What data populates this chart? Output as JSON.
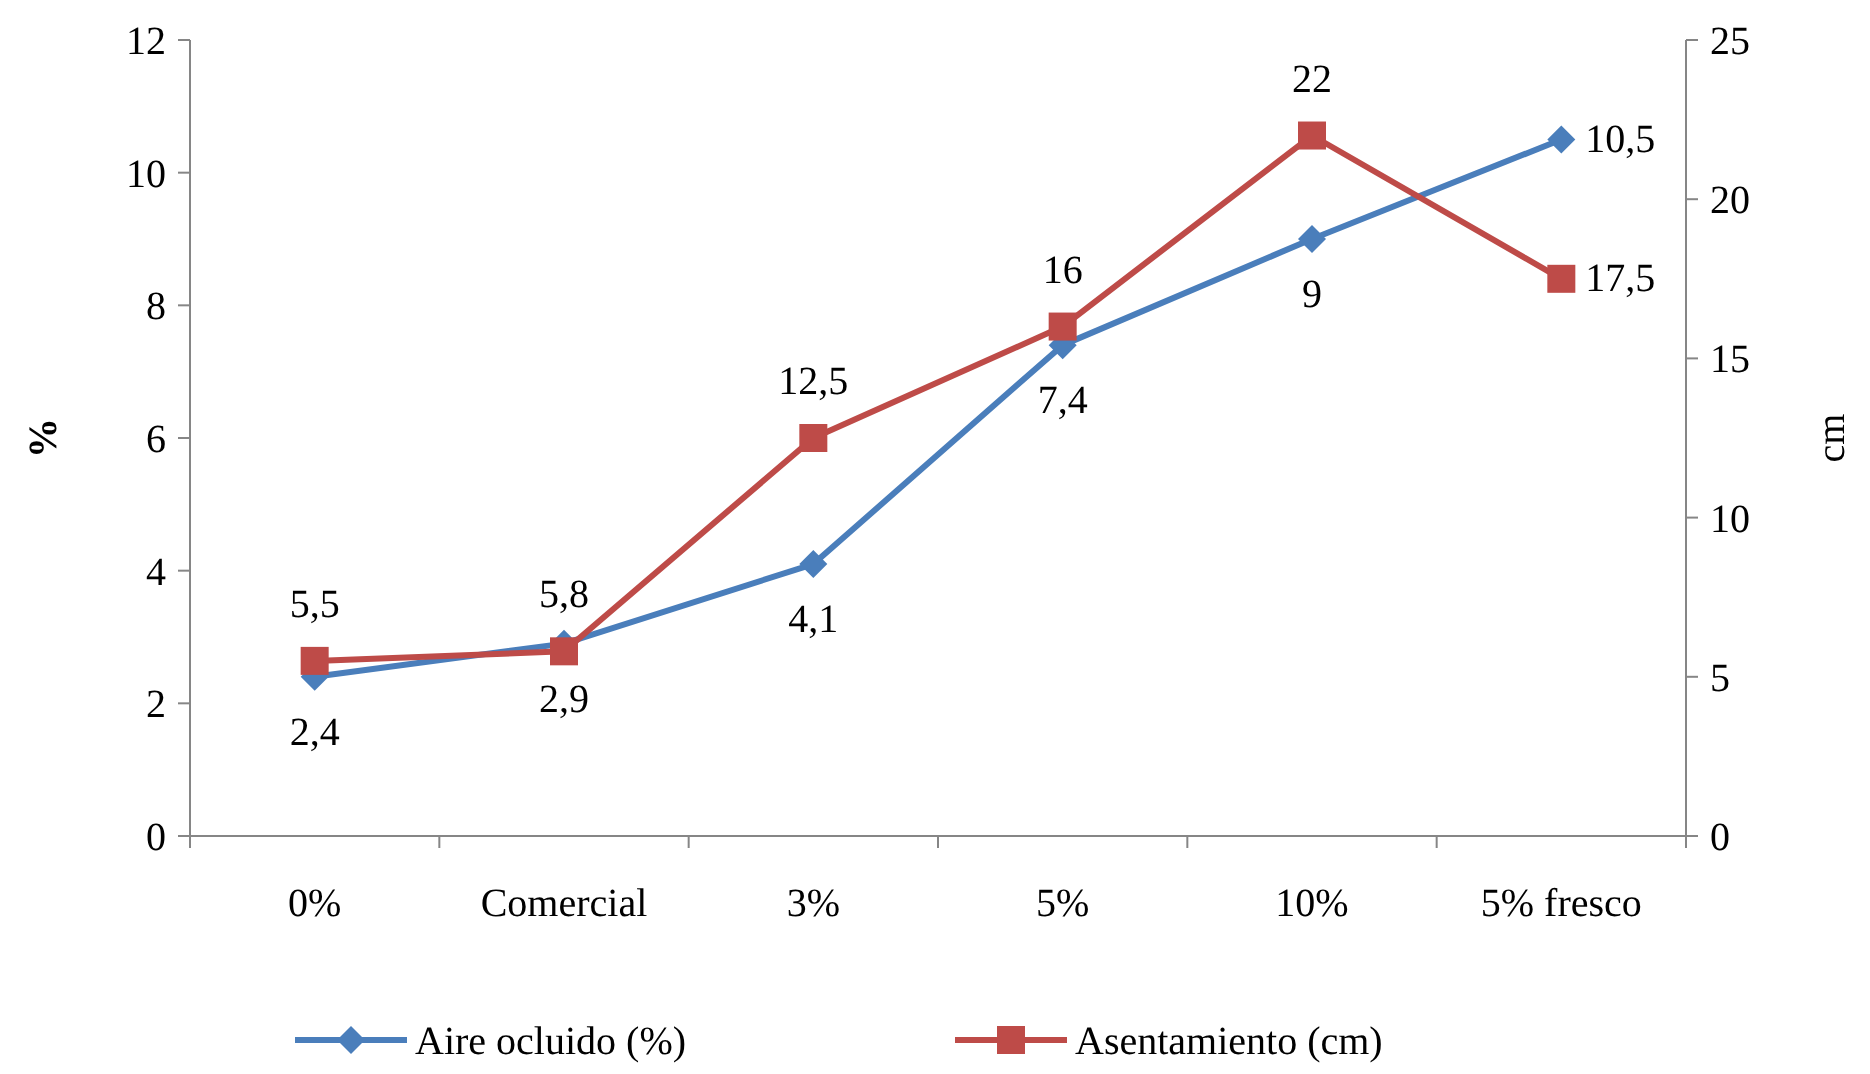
{
  "chart_data": {
    "type": "line",
    "categories": [
      "0%",
      "Comercial",
      "3%",
      "5%",
      "10%",
      "5% fresco"
    ],
    "series": [
      {
        "name": "Aire ocluido (%)",
        "color": "#4a7ebb",
        "marker": "diamond",
        "values": [
          2.4,
          2.9,
          4.1,
          7.4,
          9,
          10.5
        ],
        "value_labels": [
          "2,4",
          "2,9",
          "4,1",
          "7,4",
          "9",
          "10,5"
        ]
      },
      {
        "name": "Asentamiento (cm)",
        "color": "#be4b48",
        "marker": "square",
        "axis": "y2",
        "values": [
          5.5,
          5.8,
          12.5,
          16,
          22,
          17.5
        ],
        "value_labels": [
          "5,5",
          "5,8",
          "12,5",
          "16",
          "22",
          "17,5"
        ]
      }
    ],
    "ylabel": "%",
    "y2label": "cm",
    "ylim": [
      0,
      12
    ],
    "yticks": [
      0,
      2,
      4,
      6,
      8,
      10,
      12
    ],
    "y2lim": [
      0,
      25
    ],
    "y2ticks": [
      0,
      5,
      10,
      15,
      20,
      25
    ],
    "legend": "bottom",
    "grid": false
  }
}
